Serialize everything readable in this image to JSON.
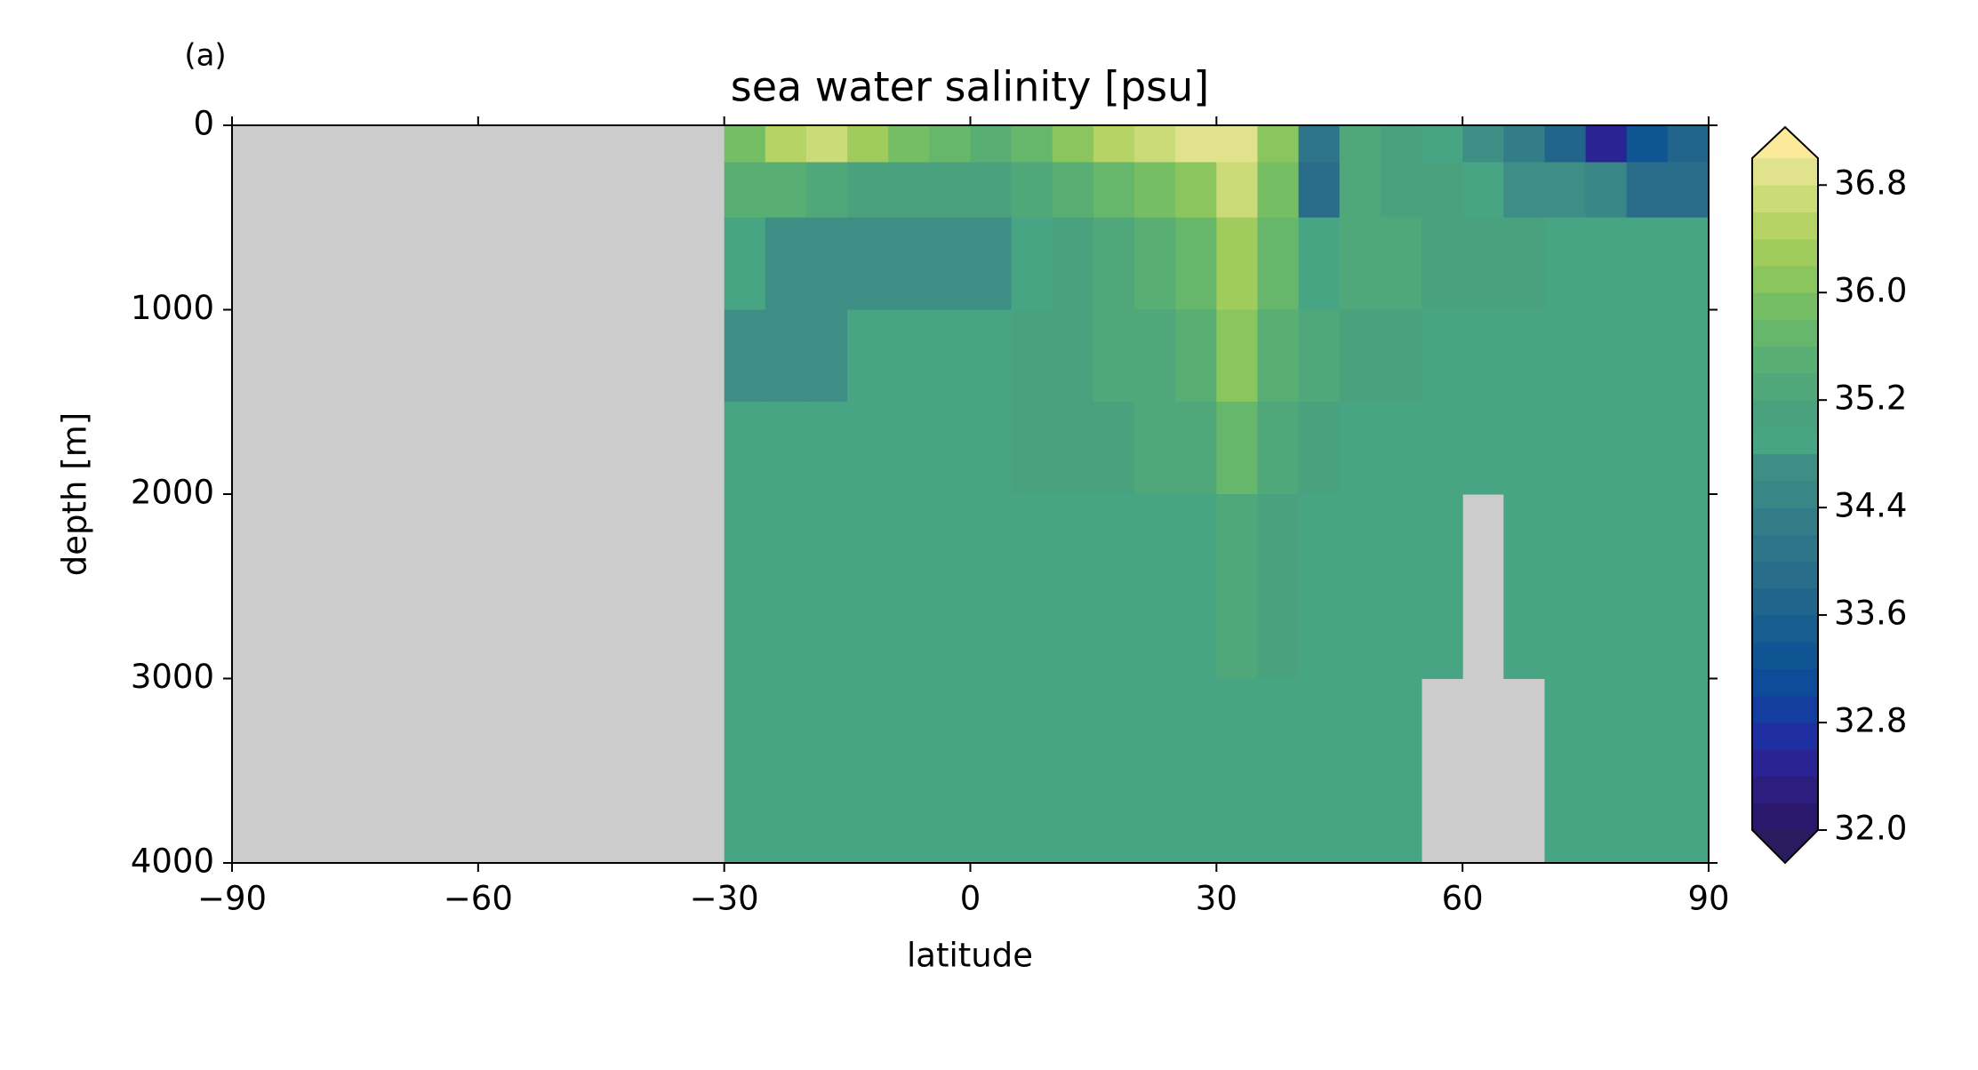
{
  "chart_data": {
    "type": "heatmap",
    "panel_label": "(a)",
    "title": "sea water salinity [psu]",
    "x_label": "latitude",
    "y_label": "depth [m]",
    "x_edges": [
      -90,
      -30,
      -25,
      -20,
      -15,
      -10,
      -5,
      0,
      5,
      10,
      15,
      20,
      25,
      30,
      35,
      40,
      45,
      50,
      55,
      60,
      65,
      70,
      75,
      80,
      85,
      90
    ],
    "y_edges": [
      0,
      200,
      500,
      1000,
      1500,
      2000,
      3000,
      4000
    ],
    "values": [
      [
        null,
        35.8,
        36.4,
        36.6,
        36.2,
        35.8,
        35.6,
        35.4,
        35.6,
        36.0,
        36.4,
        36.6,
        36.8,
        36.8,
        36.0,
        34.0,
        35.2,
        35.0,
        34.8,
        34.6,
        34.2,
        33.6,
        32.4,
        33.2,
        33.6
      ],
      [
        null,
        35.4,
        35.4,
        35.2,
        35.0,
        35.0,
        35.0,
        35.0,
        35.2,
        35.4,
        35.6,
        35.8,
        36.0,
        36.6,
        35.8,
        33.8,
        35.2,
        35.0,
        35.0,
        34.8,
        34.6,
        34.6,
        34.4,
        33.8,
        33.8
      ],
      [
        null,
        34.8,
        34.6,
        34.6,
        34.6,
        34.6,
        34.6,
        34.6,
        34.8,
        35.0,
        35.2,
        35.4,
        35.6,
        36.2,
        35.6,
        34.8,
        35.2,
        35.2,
        35.0,
        35.0,
        35.0,
        34.8,
        34.8,
        34.8,
        34.8
      ],
      [
        null,
        34.6,
        34.6,
        34.6,
        34.8,
        34.8,
        34.8,
        34.9,
        35.0,
        35.0,
        35.2,
        35.2,
        35.4,
        36.0,
        35.4,
        35.2,
        35.0,
        35.0,
        34.9,
        34.9,
        34.9,
        34.9,
        34.9,
        34.9,
        34.9
      ],
      [
        null,
        34.8,
        34.9,
        34.9,
        34.9,
        34.9,
        34.9,
        34.9,
        35.0,
        35.0,
        35.0,
        35.2,
        35.2,
        35.6,
        35.2,
        35.0,
        34.9,
        34.9,
        34.9,
        34.9,
        34.9,
        34.9,
        34.9,
        34.9,
        34.9
      ],
      [
        null,
        34.9,
        34.9,
        34.9,
        34.9,
        34.9,
        34.9,
        34.9,
        34.9,
        34.9,
        34.9,
        34.9,
        34.9,
        35.2,
        35.0,
        34.9,
        34.9,
        34.9,
        34.9,
        null,
        34.9,
        34.9,
        34.9,
        34.9,
        34.9
      ],
      [
        null,
        34.9,
        34.9,
        34.9,
        34.9,
        34.9,
        34.9,
        34.9,
        34.9,
        34.9,
        34.9,
        34.9,
        34.9,
        34.9,
        34.9,
        34.9,
        34.9,
        34.9,
        null,
        null,
        null,
        34.9,
        34.9,
        34.9,
        34.9
      ]
    ],
    "xlim": [
      -90,
      90
    ],
    "xticks": [
      {
        "value": -90,
        "label": "−90"
      },
      {
        "value": -60,
        "label": "−60"
      },
      {
        "value": -30,
        "label": "−30"
      },
      0,
      30,
      60,
      90
    ],
    "ylim": [
      4000,
      0
    ],
    "yticks": [
      0,
      1000,
      2000,
      3000,
      4000
    ],
    "nan_color": "#cccccc",
    "colorbar": {
      "lim": [
        32.0,
        37.0
      ],
      "level_step": 0.2,
      "extend": "both",
      "ticks": [
        {
          "value": 32.0,
          "label": "32.0"
        },
        32.8,
        33.6,
        34.4,
        35.2,
        {
          "value": 36.0,
          "label": "36.0"
        },
        36.8
      ],
      "colors": [
        "#2a186c",
        "#2c1d7f",
        "#2a2393",
        "#1f2ea1",
        "#143da0",
        "#0e4b99",
        "#0f5593",
        "#185d8f",
        "#21658c",
        "#296d8a",
        "#2f7589",
        "#347d88",
        "#398687",
        "#3e8e86",
        "#47a584",
        "#4aa17e",
        "#50a77a",
        "#59ae73",
        "#66b66b",
        "#76be63",
        "#8ac55d",
        "#a0cc5e",
        "#b6d366",
        "#cbdb78",
        "#e1e38c"
      ],
      "under_color": "#2a1a5e",
      "over_color": "#fde99a"
    }
  }
}
